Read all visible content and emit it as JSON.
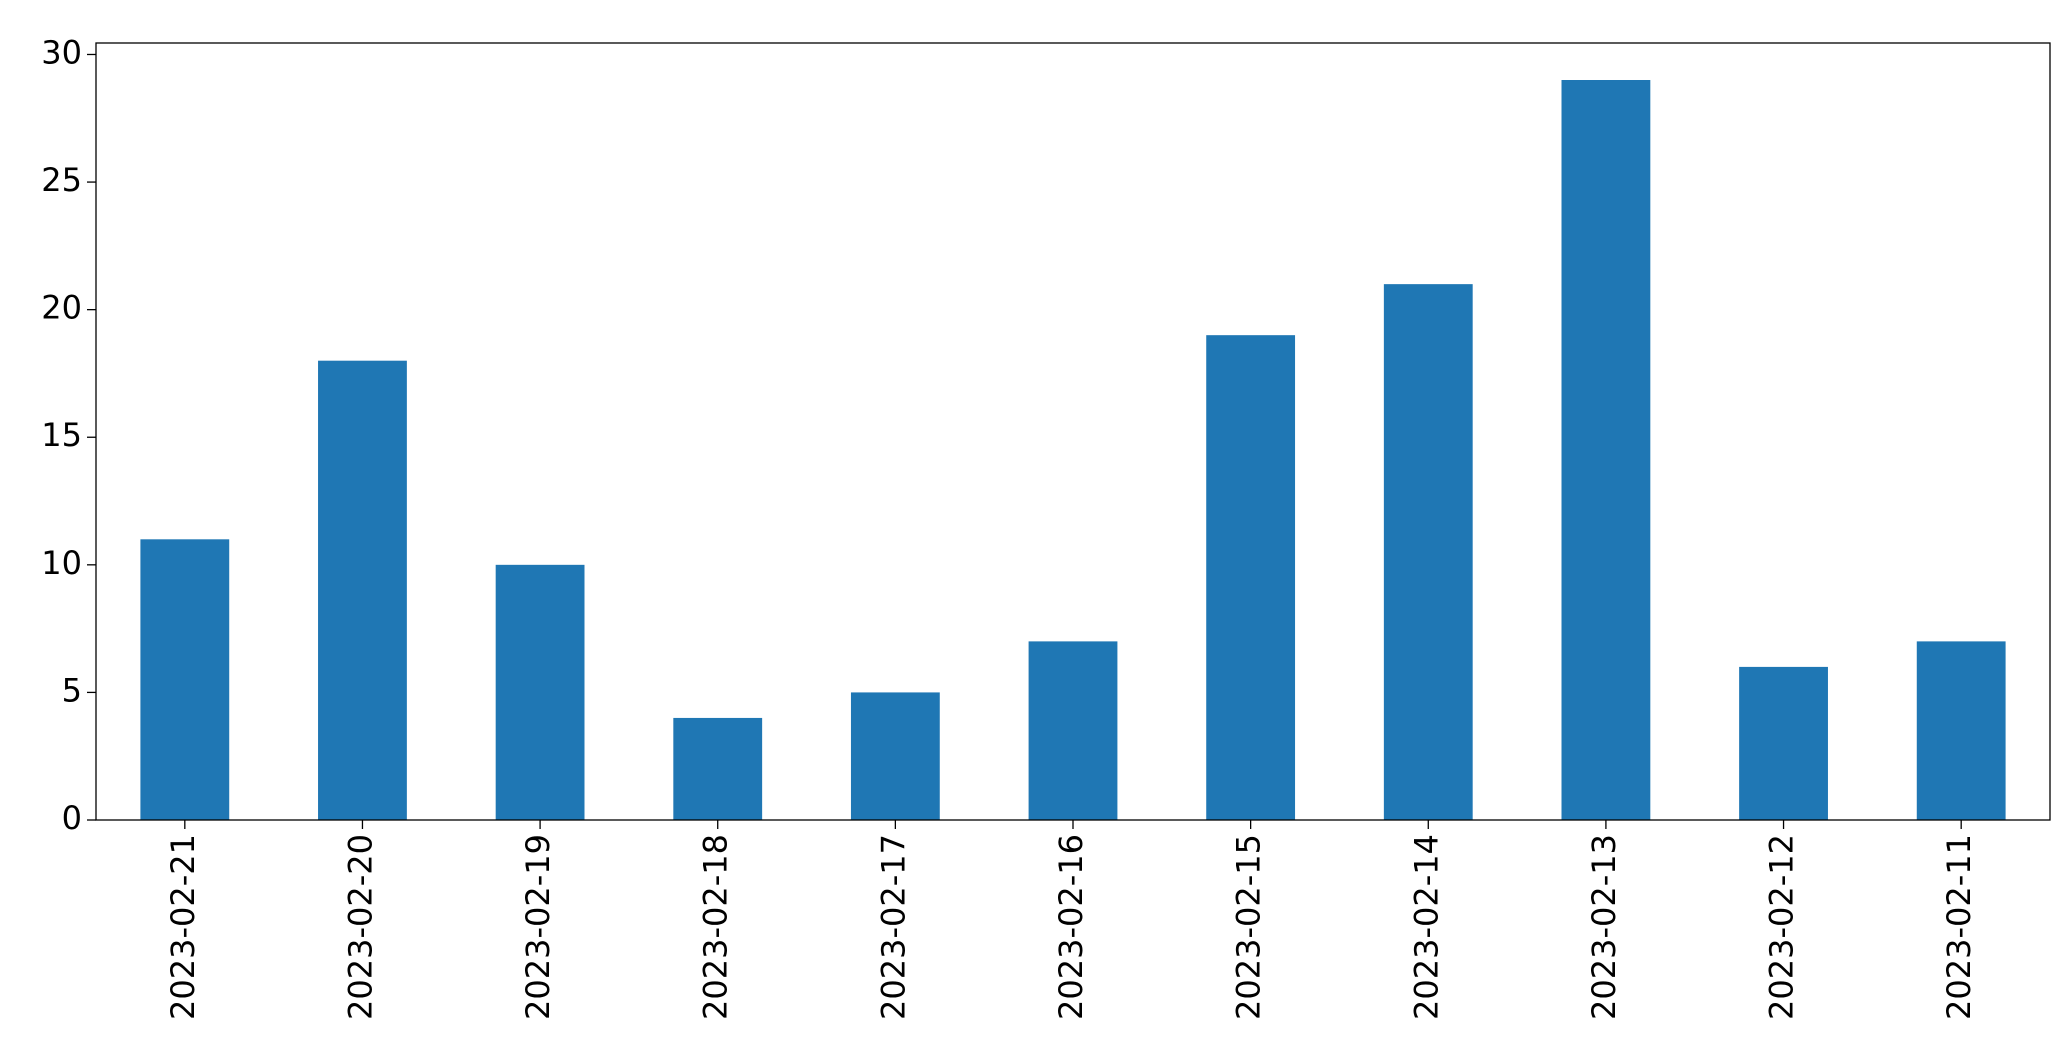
{
  "chart_data": {
    "type": "bar",
    "categories": [
      "2023-02-21",
      "2023-02-20",
      "2023-02-19",
      "2023-02-18",
      "2023-02-17",
      "2023-02-16",
      "2023-02-15",
      "2023-02-14",
      "2023-02-13",
      "2023-02-12",
      "2023-02-11"
    ],
    "values": [
      11,
      18,
      10,
      4,
      5,
      7,
      19,
      21,
      29,
      6,
      7
    ],
    "color": "#1f77b4",
    "ylim": [
      0,
      30.45
    ],
    "yticks": [
      0,
      5,
      10,
      15,
      20,
      25,
      30
    ],
    "grid": false
  }
}
